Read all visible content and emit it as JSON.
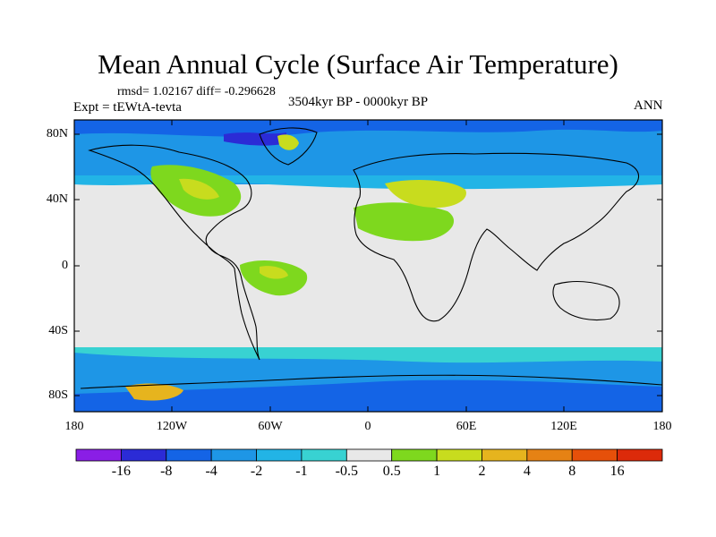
{
  "title": "Mean Annual Cycle (Surface Air Temperature)",
  "stats": "rmsd= 1.02167 diff= -0.296628",
  "experiment": "Expt = tEWtA-tevta",
  "period": "3504kyr BP - 0000kyr BP",
  "season": "ANN",
  "lat_labels": [
    "80N",
    "40N",
    "0",
    "40S",
    "80S"
  ],
  "lon_labels": [
    "180",
    "120W",
    "60W",
    "0",
    "60E",
    "120E",
    "180"
  ],
  "colorbar": {
    "labels": [
      "-16",
      "-8",
      "-4",
      "-2",
      "-1",
      "-0.5",
      "0.5",
      "1",
      "2",
      "4",
      "8",
      "16"
    ],
    "colors": [
      "#8a1ee6",
      "#2b2bd6",
      "#1464e6",
      "#1e96e6",
      "#22b4e6",
      "#38d2d2",
      "#e8e8e8",
      "#7ed81e",
      "#c8dc1e",
      "#e6b41e",
      "#e68214",
      "#e6500a",
      "#dc2a0a"
    ]
  },
  "field_colors": {
    "ocean_neutral": "#e8e8e8",
    "cool_light": "#1e96e6",
    "cool_mid": "#1464e6",
    "cool_strong": "#2b2bd6",
    "cool_faint": "#22b4e6",
    "cool_teal": "#38d2d2",
    "warm_green": "#7ed81e",
    "warm_yellow": "#c8dc1e",
    "warm_orange": "#e6b41e"
  }
}
